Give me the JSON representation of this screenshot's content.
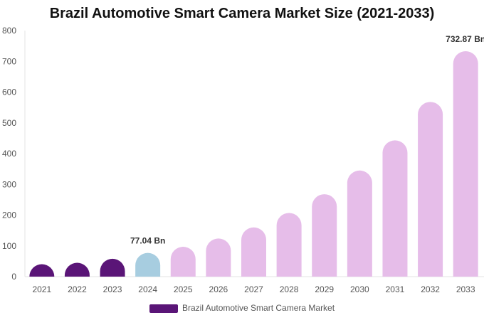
{
  "title": "Brazil Automotive Smart Camera Market Size (2021-2033)",
  "chart_data": {
    "type": "bar",
    "title": "Brazil Automotive Smart Camera Market Size (2021-2033)",
    "categories": [
      "2021",
      "2022",
      "2023",
      "2024",
      "2025",
      "2026",
      "2027",
      "2028",
      "2029",
      "2030",
      "2031",
      "2032",
      "2033"
    ],
    "series": [
      {
        "name": "Brazil Automotive Smart Camera Market",
        "values": [
          35,
          45,
          58,
          77.04,
          97,
          124,
          160,
          207,
          268,
          345,
          443,
          568,
          732.87
        ]
      }
    ],
    "bar_colors": [
      "#5a1577",
      "#5a1577",
      "#5a1577",
      "#a7cde0",
      "#e6bde9",
      "#e6bde9",
      "#e6bde9",
      "#e6bde9",
      "#e6bde9",
      "#e6bde9",
      "#e6bde9",
      "#e6bde9",
      "#e6bde9"
    ],
    "y_ticks": [
      0,
      100,
      200,
      300,
      400,
      500,
      600,
      700,
      800
    ],
    "ylim": [
      0,
      800
    ],
    "data_labels": [
      {
        "category": "2024",
        "text": "77.04 Bn"
      },
      {
        "category": "2033",
        "text": "732.87 Bn"
      }
    ],
    "legend": {
      "position": "bottom",
      "label": "Brazil Automotive Smart Camera Market",
      "color": "#5a1577"
    },
    "grid": false
  }
}
